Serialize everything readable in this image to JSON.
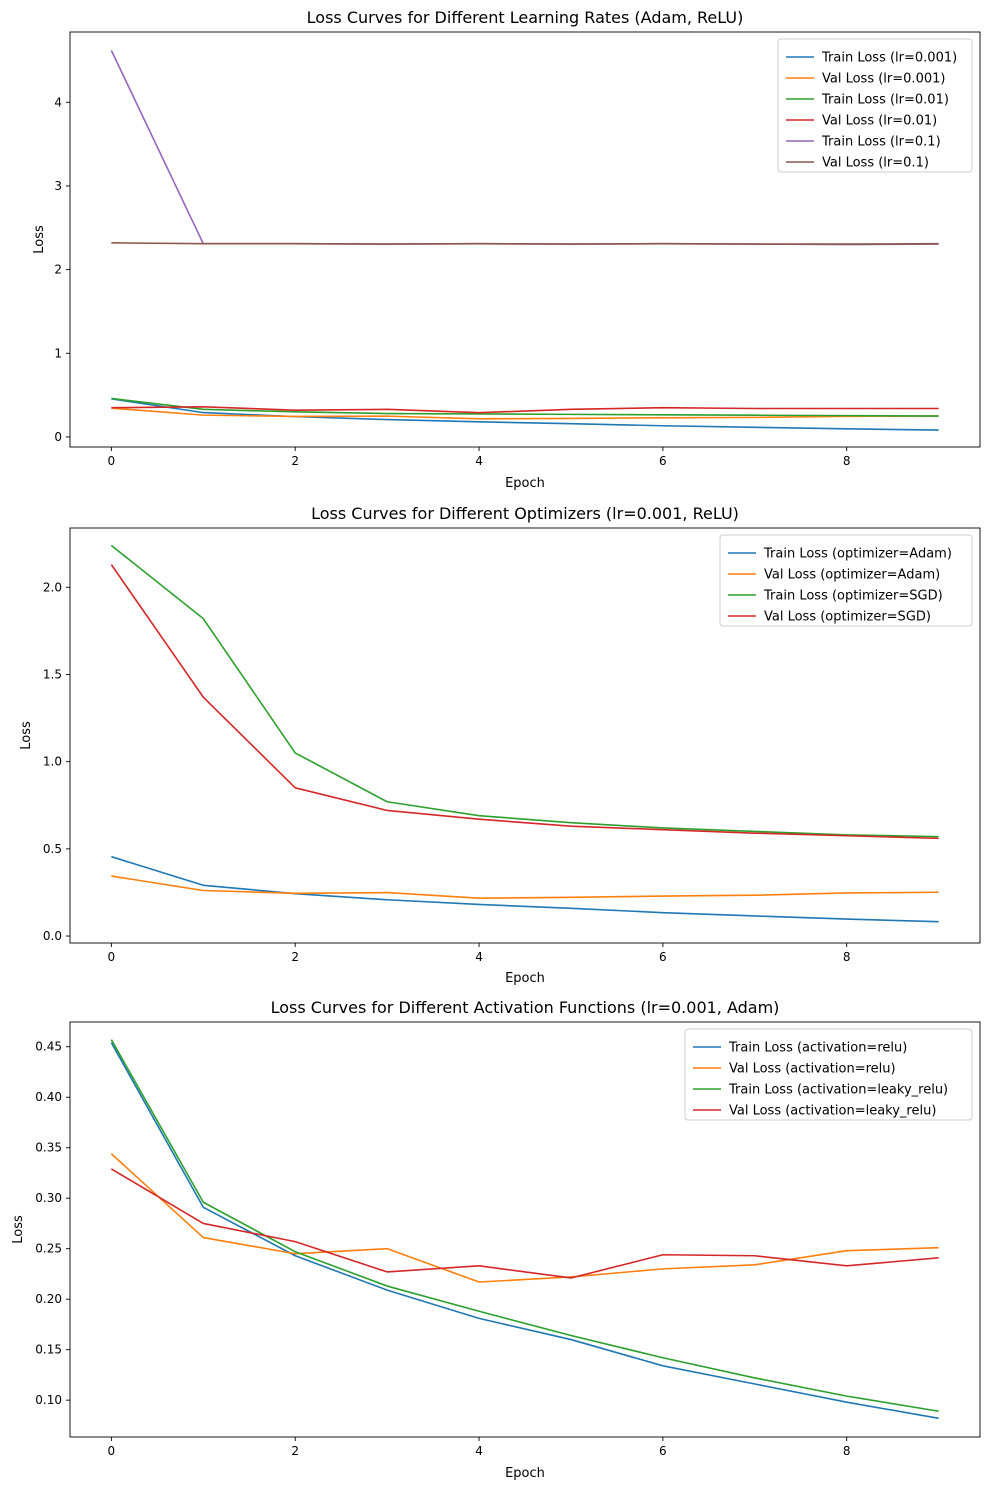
{
  "chart_data": [
    {
      "type": "line",
      "title": "Loss Curves for Different Learning Rates (Adam, ReLU)",
      "xlabel": "Epoch",
      "ylabel": "Loss",
      "xlim": [
        -0.45,
        9.45
      ],
      "ylim": [
        -0.12,
        4.84
      ],
      "xticks": [
        0,
        2,
        4,
        6,
        8
      ],
      "yticks": [
        0,
        1,
        2,
        3,
        4
      ],
      "ytick_decimals": 0,
      "grid": false,
      "legend_position": "upper right",
      "x": [
        0,
        1,
        2,
        3,
        4,
        5,
        6,
        7,
        8,
        9
      ],
      "series": [
        {
          "name": "Train Loss (lr=0.001)",
          "color": "#1f77b4",
          "values": [
            0.455,
            0.291,
            0.243,
            0.208,
            0.181,
            0.159,
            0.134,
            0.115,
            0.097,
            0.082
          ]
        },
        {
          "name": "Val Loss (lr=0.001)",
          "color": "#ff7f0e",
          "values": [
            0.344,
            0.261,
            0.245,
            0.249,
            0.217,
            0.222,
            0.229,
            0.234,
            0.247,
            0.251
          ]
        },
        {
          "name": "Train Loss (lr=0.01)",
          "color": "#2ca02c",
          "values": [
            0.46,
            0.33,
            0.3,
            0.28,
            0.275,
            0.27,
            0.265,
            0.26,
            0.255,
            0.25
          ]
        },
        {
          "name": "Val Loss (lr=0.01)",
          "color": "#d62728",
          "values": [
            0.35,
            0.36,
            0.32,
            0.33,
            0.29,
            0.33,
            0.35,
            0.34,
            0.34,
            0.34
          ]
        },
        {
          "name": "Train Loss (lr=0.1)",
          "color": "#9467bd",
          "values": [
            4.62,
            2.31,
            2.31,
            2.305,
            2.31,
            2.305,
            2.31,
            2.305,
            2.3,
            2.305
          ]
        },
        {
          "name": "Val Loss (lr=0.1)",
          "color": "#8c564b",
          "values": [
            2.32,
            2.31,
            2.31,
            2.305,
            2.31,
            2.305,
            2.31,
            2.305,
            2.305,
            2.31
          ]
        }
      ]
    },
    {
      "type": "line",
      "title": "Loss Curves for Different Optimizers (lr=0.001, ReLU)",
      "xlabel": "Epoch",
      "ylabel": "Loss",
      "xlim": [
        -0.45,
        9.45
      ],
      "ylim": [
        -0.04,
        2.34
      ],
      "xticks": [
        0,
        2,
        4,
        6,
        8
      ],
      "yticks": [
        0.0,
        0.5,
        1.0,
        1.5,
        2.0
      ],
      "ytick_decimals": 1,
      "grid": false,
      "legend_position": "upper right",
      "x": [
        0,
        1,
        2,
        3,
        4,
        5,
        6,
        7,
        8,
        9
      ],
      "series": [
        {
          "name": "Train Loss (optimizer=Adam)",
          "color": "#1f77b4",
          "values": [
            0.455,
            0.291,
            0.243,
            0.208,
            0.181,
            0.159,
            0.134,
            0.115,
            0.097,
            0.082
          ]
        },
        {
          "name": "Val Loss (optimizer=Adam)",
          "color": "#ff7f0e",
          "values": [
            0.344,
            0.261,
            0.245,
            0.249,
            0.217,
            0.222,
            0.229,
            0.234,
            0.247,
            0.251
          ]
        },
        {
          "name": "Train Loss (optimizer=SGD)",
          "color": "#2ca02c",
          "values": [
            2.24,
            1.82,
            1.05,
            0.77,
            0.69,
            0.65,
            0.62,
            0.6,
            0.58,
            0.57
          ]
        },
        {
          "name": "Val Loss (optimizer=SGD)",
          "color": "#d62728",
          "values": [
            2.13,
            1.37,
            0.85,
            0.72,
            0.67,
            0.63,
            0.61,
            0.59,
            0.575,
            0.56
          ]
        }
      ]
    },
    {
      "type": "line",
      "title": "Loss Curves for Different Activation Functions (lr=0.001, Adam)",
      "xlabel": "Epoch",
      "ylabel": "Loss",
      "xlim": [
        -0.45,
        9.45
      ],
      "ylim": [
        0.0635,
        0.4745
      ],
      "xticks": [
        0,
        2,
        4,
        6,
        8
      ],
      "yticks": [
        0.1,
        0.15,
        0.2,
        0.25,
        0.3,
        0.35,
        0.4,
        0.45
      ],
      "ytick_decimals": 2,
      "grid": false,
      "legend_position": "upper right",
      "x": [
        0,
        1,
        2,
        3,
        4,
        5,
        6,
        7,
        8,
        9
      ],
      "series": [
        {
          "name": "Train Loss (activation=relu)",
          "color": "#1f77b4",
          "values": [
            0.454,
            0.291,
            0.243,
            0.209,
            0.181,
            0.16,
            0.134,
            0.116,
            0.098,
            0.082
          ]
        },
        {
          "name": "Val Loss (activation=relu)",
          "color": "#ff7f0e",
          "values": [
            0.344,
            0.261,
            0.245,
            0.25,
            0.217,
            0.222,
            0.23,
            0.234,
            0.248,
            0.251
          ]
        },
        {
          "name": "Train Loss (activation=leaky_relu)",
          "color": "#2ca02c",
          "values": [
            0.457,
            0.296,
            0.247,
            0.213,
            0.188,
            0.164,
            0.142,
            0.122,
            0.104,
            0.089
          ]
        },
        {
          "name": "Val Loss (activation=leaky_relu)",
          "color": "#d62728",
          "values": [
            0.329,
            0.275,
            0.257,
            0.227,
            0.233,
            0.221,
            0.244,
            0.243,
            0.233,
            0.241
          ]
        }
      ]
    }
  ]
}
